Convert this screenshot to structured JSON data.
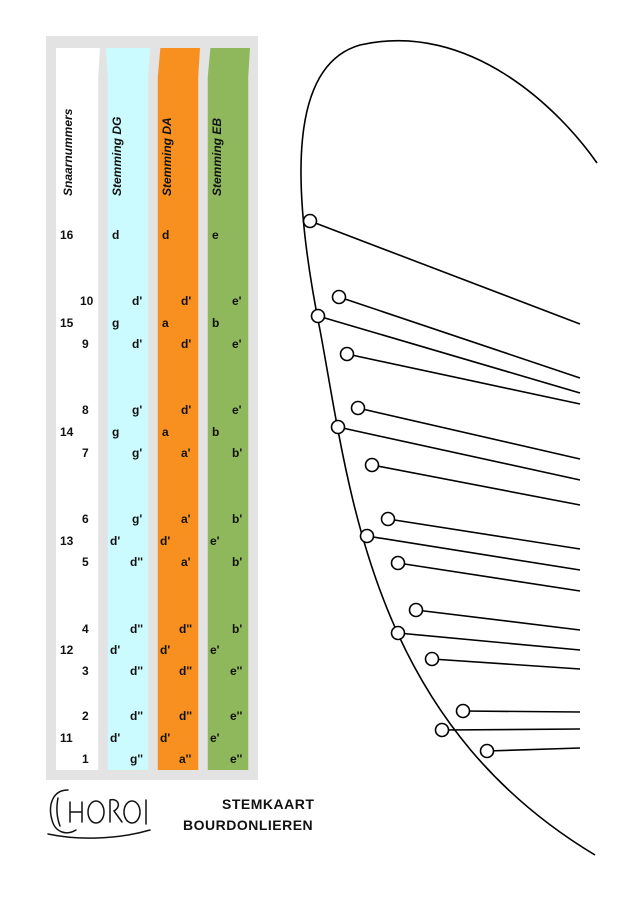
{
  "columns": {
    "num": "Snaarnummers",
    "dg": "Stemming DG",
    "da": "Stemming DA",
    "eb": "Stemming EB"
  },
  "rows": [
    {
      "n": "16",
      "dg": "d",
      "da": "d",
      "eb": "e"
    },
    {
      "n": "10",
      "dg": "d'",
      "da": "d'",
      "eb": "e'"
    },
    {
      "n": "15",
      "dg": "g",
      "da": "a",
      "eb": "b"
    },
    {
      "n": "9",
      "dg": "d'",
      "da": "d'",
      "eb": "e'"
    },
    {
      "n": "8",
      "dg": "g'",
      "da": "d'",
      "eb": "e'"
    },
    {
      "n": "14",
      "dg": "g",
      "da": "a",
      "eb": "b"
    },
    {
      "n": "7",
      "dg": "g'",
      "da": "a'",
      "eb": "b'"
    },
    {
      "n": "6",
      "dg": "g'",
      "da": "a'",
      "eb": "b'"
    },
    {
      "n": "13",
      "dg": "d'",
      "da": "d'",
      "eb": "e'"
    },
    {
      "n": "5",
      "dg": "d''",
      "da": "a'",
      "eb": "b'"
    },
    {
      "n": "4",
      "dg": "d''",
      "da": "d''",
      "eb": "b'"
    },
    {
      "n": "12",
      "dg": "d'",
      "da": "d'",
      "eb": "e'"
    },
    {
      "n": "3",
      "dg": "d''",
      "da": "d''",
      "eb": "e''"
    },
    {
      "n": "2",
      "dg": "d''",
      "da": "d''",
      "eb": "e''"
    },
    {
      "n": "11",
      "dg": "d'",
      "da": "d'",
      "eb": "e'"
    },
    {
      "n": "1",
      "dg": "g''",
      "da": "a''",
      "eb": "e''"
    }
  ],
  "logo": "CHOROI",
  "title": {
    "line1": "STEMKAART",
    "line2": "BOURDONLIEREN"
  },
  "colors": {
    "dg": "#ccfbff",
    "da": "#f7901e",
    "eb": "#8fb85c"
  }
}
